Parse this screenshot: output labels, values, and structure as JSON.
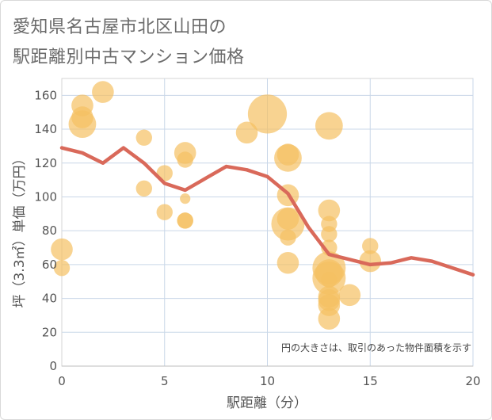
{
  "title_line1": "愛知県名古屋市北区山田の",
  "title_line2": "駅距離別中古マンション価格",
  "chart_data": {
    "type": "scatter",
    "xlabel": "駅距離（分）",
    "ylabel": "坪（3.3㎡）単価（万円）",
    "xlim": [
      0,
      20
    ],
    "ylim": [
      0,
      170
    ],
    "xticks": [
      0,
      5,
      10,
      15,
      20
    ],
    "yticks": [
      0,
      20,
      40,
      60,
      80,
      100,
      120,
      140,
      160
    ],
    "grid": true,
    "note": "円の大きさは、取引のあった物件面積を示す",
    "bubble_color": "#f5c063",
    "line_color": "#d9695a",
    "bubbles": [
      {
        "x": 0,
        "y": 69,
        "size": 3
      },
      {
        "x": 0,
        "y": 58,
        "size": 2
      },
      {
        "x": 1,
        "y": 154,
        "size": 3
      },
      {
        "x": 1,
        "y": 147,
        "size": 3
      },
      {
        "x": 1,
        "y": 143,
        "size": 4
      },
      {
        "x": 2,
        "y": 162,
        "size": 3
      },
      {
        "x": 4,
        "y": 135,
        "size": 2
      },
      {
        "x": 4,
        "y": 105,
        "size": 2
      },
      {
        "x": 5,
        "y": 114,
        "size": 2
      },
      {
        "x": 5,
        "y": 91,
        "size": 2
      },
      {
        "x": 6,
        "y": 126,
        "size": 3
      },
      {
        "x": 6,
        "y": 122,
        "size": 2
      },
      {
        "x": 6,
        "y": 99,
        "size": 1
      },
      {
        "x": 6,
        "y": 86,
        "size": 2
      },
      {
        "x": 6,
        "y": 86,
        "size": 2
      },
      {
        "x": 9,
        "y": 138,
        "size": 3
      },
      {
        "x": 10,
        "y": 149,
        "size": 6
      },
      {
        "x": 11,
        "y": 125,
        "size": 3
      },
      {
        "x": 11,
        "y": 123,
        "size": 4
      },
      {
        "x": 11,
        "y": 101,
        "size": 3
      },
      {
        "x": 11,
        "y": 87,
        "size": 3
      },
      {
        "x": 11,
        "y": 84,
        "size": 5
      },
      {
        "x": 11,
        "y": 76,
        "size": 2
      },
      {
        "x": 11,
        "y": 61,
        "size": 3
      },
      {
        "x": 13,
        "y": 142,
        "size": 4
      },
      {
        "x": 13,
        "y": 92,
        "size": 3
      },
      {
        "x": 13,
        "y": 84,
        "size": 2
      },
      {
        "x": 13,
        "y": 78,
        "size": 2
      },
      {
        "x": 13,
        "y": 70,
        "size": 2
      },
      {
        "x": 13,
        "y": 58,
        "size": 5
      },
      {
        "x": 13,
        "y": 55,
        "size": 4
      },
      {
        "x": 13,
        "y": 52,
        "size": 5
      },
      {
        "x": 13,
        "y": 51,
        "size": 2
      },
      {
        "x": 13,
        "y": 41,
        "size": 3
      },
      {
        "x": 13,
        "y": 39,
        "size": 3
      },
      {
        "x": 13,
        "y": 36,
        "size": 3
      },
      {
        "x": 13,
        "y": 28,
        "size": 3
      },
      {
        "x": 14,
        "y": 42,
        "size": 3
      },
      {
        "x": 15,
        "y": 71,
        "size": 2
      },
      {
        "x": 15,
        "y": 62,
        "size": 3
      }
    ],
    "line": {
      "x": [
        0,
        1,
        2,
        3,
        4,
        5,
        6,
        7,
        8,
        9,
        10,
        11,
        12,
        13,
        14,
        15,
        16,
        17,
        18,
        19,
        20
      ],
      "y": [
        129,
        126,
        120,
        129,
        120,
        108,
        104,
        111,
        118,
        116,
        112,
        102,
        82,
        66,
        63,
        60,
        61,
        64,
        62,
        58,
        54
      ]
    }
  }
}
